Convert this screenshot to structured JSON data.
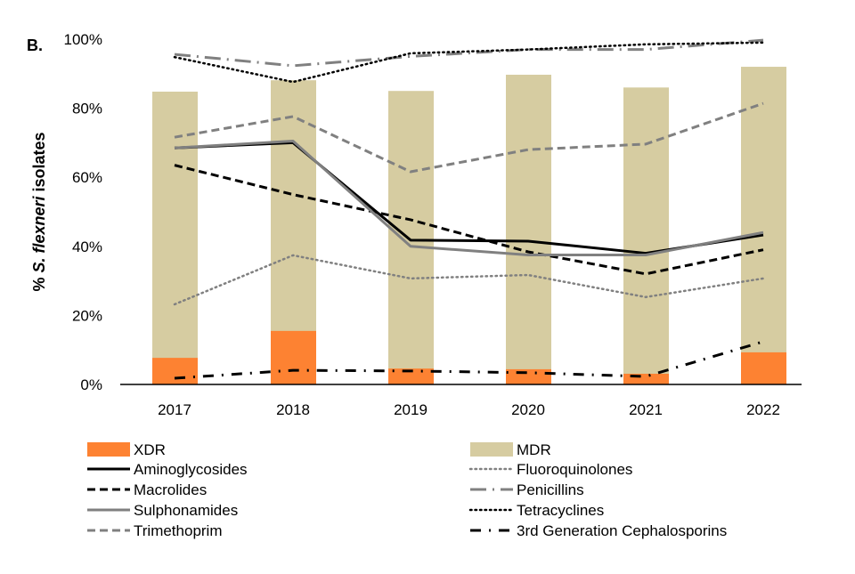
{
  "chart_data": {
    "type": "bar",
    "panel_label": "B.",
    "ylabel": {
      "prefix": "% ",
      "italic": "S. flexneri",
      "suffix": " isolates"
    },
    "ylim": [
      0,
      100
    ],
    "yticks": [
      "0%",
      "20%",
      "40%",
      "60%",
      "80%",
      "100%"
    ],
    "ytick_values": [
      0,
      20,
      40,
      60,
      80,
      100
    ],
    "grid": false,
    "legend_placement": "bottom",
    "categories": [
      "2017",
      "2018",
      "2019",
      "2020",
      "2021",
      "2022"
    ],
    "bars": [
      {
        "name": "MDR",
        "color": "#d6cca1",
        "values": [
          84.8,
          88.1,
          85.0,
          89.7,
          86.0,
          92.0
        ]
      },
      {
        "name": "XDR",
        "color": "#fd8232",
        "values": [
          7.7,
          15.5,
          4.6,
          4.4,
          3.1,
          9.3
        ]
      }
    ],
    "series": [
      {
        "name": "Aminoglycosides",
        "color": "#000000",
        "dash": "solid",
        "values": [
          68.5,
          70.0,
          41.8,
          41.5,
          38.0,
          43.3
        ]
      },
      {
        "name": "Fluoroquinolones",
        "color": "#808080",
        "dash": "dot",
        "values": [
          23.2,
          37.4,
          30.7,
          31.7,
          25.3,
          30.7
        ]
      },
      {
        "name": "Macrolides",
        "color": "#000000",
        "dash": "dash",
        "values": [
          63.5,
          55.0,
          47.7,
          38.4,
          32.0,
          39.0
        ]
      },
      {
        "name": "Penicillins",
        "color": "#808080",
        "dash": "longdashdot",
        "values": [
          95.6,
          92.3,
          95.0,
          97.0,
          97.0,
          99.7
        ]
      },
      {
        "name": "Sulphonamides",
        "color": "#808080",
        "dash": "solid",
        "values": [
          68.5,
          70.5,
          40.0,
          37.5,
          37.5,
          44.0
        ]
      },
      {
        "name": "Tetracyclines",
        "color": "#000000",
        "dash": "dot",
        "values": [
          94.8,
          87.6,
          95.9,
          97.0,
          98.5,
          99.0
        ]
      },
      {
        "name": "Trimethoprim",
        "color": "#808080",
        "dash": "dash",
        "values": [
          71.6,
          77.6,
          61.6,
          68.0,
          69.6,
          81.4
        ]
      },
      {
        "name": "3rd Generation Cephalosporins",
        "color": "#000000",
        "dash": "dashdot",
        "values": [
          1.8,
          4.1,
          3.9,
          3.4,
          2.3,
          12.4
        ]
      }
    ]
  }
}
